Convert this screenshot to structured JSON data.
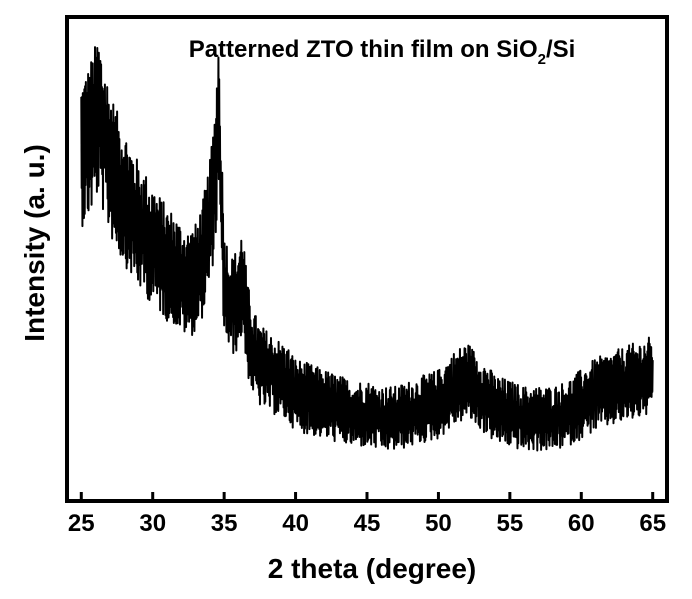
{
  "chart_data": {
    "type": "line",
    "title": {
      "prefix": "Patterned ZTO thin film on SiO",
      "subscript": "2",
      "suffix": "/Si"
    },
    "xlabel": "2 theta (degree)",
    "ylabel": "Intensity (a. u.)",
    "xlim": [
      24,
      66
    ],
    "ylim": [
      0,
      100
    ],
    "xticks": [
      "25",
      "30",
      "35",
      "40",
      "45",
      "50",
      "55",
      "60",
      "65"
    ],
    "yticks_shown": false,
    "grid": false,
    "legend": "none",
    "series": [
      {
        "x": [
          25,
          25.5,
          26,
          26.2,
          26.5,
          27,
          27.5,
          28,
          28.5,
          29,
          29.5,
          30,
          30.5,
          31,
          31.5,
          32,
          32.5,
          33,
          33.5,
          34,
          34.4,
          34.6,
          34.8,
          35,
          35.5,
          36,
          36.3,
          36.6,
          37,
          37.5,
          38,
          38.5,
          39,
          39.5,
          40,
          41,
          42,
          43,
          44,
          45,
          46,
          47,
          48,
          49,
          50,
          51,
          52,
          53,
          54,
          55,
          56,
          57,
          58,
          59,
          60,
          61,
          62,
          63,
          64,
          65
        ],
        "y": [
          72,
          74,
          78,
          80,
          76,
          70,
          66,
          63,
          60,
          57,
          55,
          53,
          51,
          49,
          48,
          46,
          45,
          46,
          50,
          57,
          68,
          80,
          62,
          45,
          40,
          42,
          46,
          36,
          31,
          28,
          27,
          26,
          25,
          24,
          22,
          21,
          20,
          19,
          18,
          18,
          17,
          17,
          18,
          19,
          20,
          23,
          25,
          22,
          19,
          18,
          17,
          17,
          17,
          18,
          20,
          22,
          23,
          24,
          25,
          26
        ],
        "color": "#000000"
      }
    ]
  }
}
